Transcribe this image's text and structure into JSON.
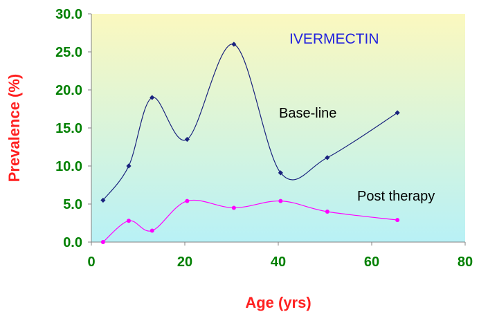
{
  "chart_data": {
    "type": "line",
    "title": "IVERMECTIN",
    "xlabel": "Age (yrs)",
    "ylabel": "Prevalence (%)",
    "xlim": [
      0,
      80
    ],
    "ylim": [
      0,
      30
    ],
    "xticks": [
      "0",
      "20",
      "40",
      "60",
      "80"
    ],
    "yticks": [
      "0.0",
      "5.0",
      "10.0",
      "15.0",
      "20.0",
      "25.0",
      "30.0"
    ],
    "grid": false,
    "smooth": true,
    "series": [
      {
        "name": "Base-line",
        "color": "#1a237e",
        "x": [
          2.5,
          8,
          13,
          20.5,
          30.5,
          40.5,
          50.5,
          65.5
        ],
        "values": [
          5.5,
          10.0,
          19.0,
          13.5,
          26.0,
          9.1,
          11.1,
          17.0
        ]
      },
      {
        "name": "Post therapy",
        "color": "#ff00ff",
        "x": [
          2.5,
          8,
          13,
          20.5,
          30.5,
          40.5,
          50.5,
          65.5
        ],
        "values": [
          0.0,
          2.8,
          1.5,
          5.4,
          4.5,
          5.4,
          4.0,
          2.9
        ]
      }
    ],
    "colors": {
      "axis_tick_labels": "#008000",
      "axis_titles": "#ff2020",
      "title": "#2222dd",
      "plot_bg_top": "#fbf8bf",
      "plot_bg_bottom": "#b8f1f6"
    }
  }
}
